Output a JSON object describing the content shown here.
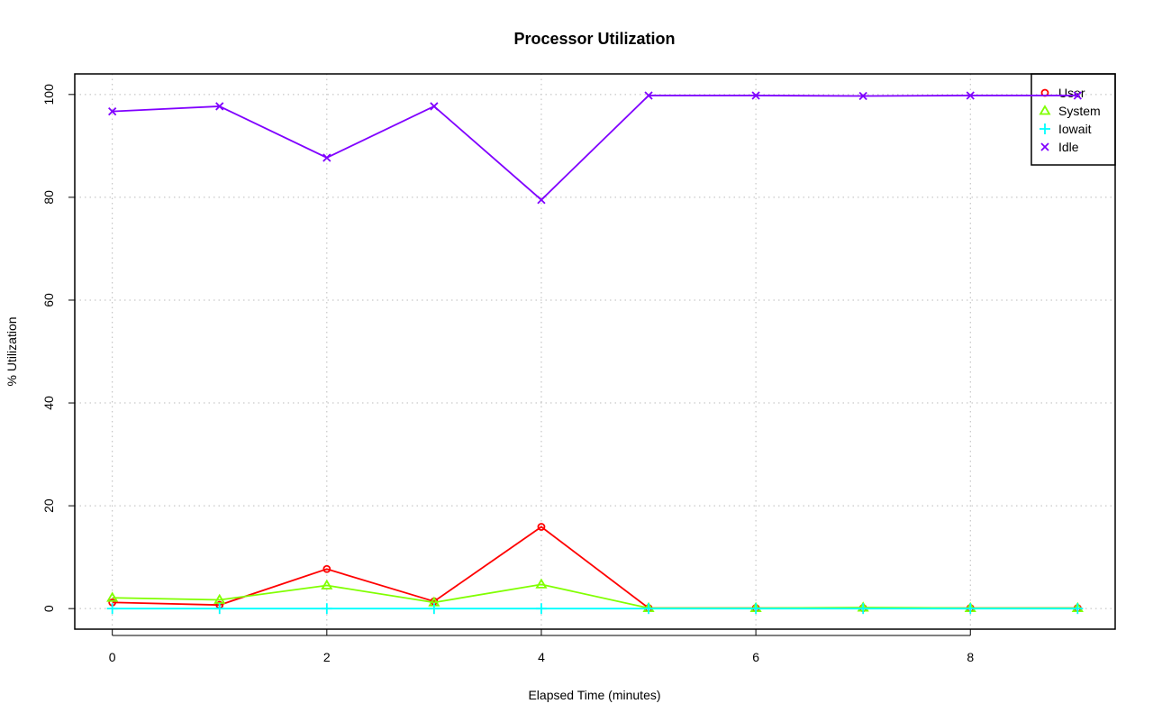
{
  "chart_data": {
    "type": "line",
    "title": "Processor Utilization",
    "xlabel": "Elapsed Time (minutes)",
    "ylabel": "% Utilization",
    "x": [
      0,
      1,
      2,
      3,
      4,
      5,
      6,
      7,
      8,
      9
    ],
    "xlim": [
      -0.35,
      9.35
    ],
    "ylim": [
      -4,
      104
    ],
    "xticks": [
      0,
      2,
      4,
      6,
      8
    ],
    "yticks": [
      0,
      20,
      40,
      60,
      80,
      100
    ],
    "grid": true,
    "legend_position": "top-right",
    "series": [
      {
        "name": "User",
        "color": "#FF0000",
        "marker": "circle",
        "values": [
          1.2,
          0.7,
          7.7,
          1.4,
          15.9,
          0.1,
          0.1,
          0.1,
          0.1,
          0.1
        ]
      },
      {
        "name": "System",
        "color": "#80FF00",
        "marker": "triangle",
        "values": [
          2.1,
          1.7,
          4.5,
          1.2,
          4.7,
          0.1,
          0.1,
          0.2,
          0.1,
          0.1
        ]
      },
      {
        "name": "Iowait",
        "color": "#00FFFF",
        "marker": "plus",
        "values": [
          0,
          0,
          0,
          0,
          0,
          0,
          0,
          0,
          0,
          0
        ]
      },
      {
        "name": "Idle",
        "color": "#8000FF",
        "marker": "cross",
        "values": [
          96.7,
          97.7,
          87.7,
          97.7,
          79.5,
          99.8,
          99.8,
          99.7,
          99.8,
          99.8
        ]
      }
    ]
  }
}
